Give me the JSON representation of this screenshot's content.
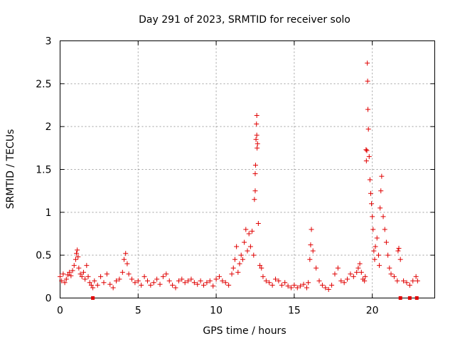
{
  "chart_data": {
    "type": "scatter",
    "title": "Day 291 of 2023, SRMTID for receiver solo",
    "xlabel": "GPS time / hours",
    "ylabel": "SRMTID / TECUs",
    "xlim": [
      0,
      24
    ],
    "ylim": [
      0,
      3
    ],
    "xticks": [
      0,
      5,
      10,
      15,
      20
    ],
    "yticks": [
      0,
      0.5,
      1,
      1.5,
      2,
      2.5,
      3
    ],
    "xtick_labels": [
      "0",
      "5",
      "10",
      "15",
      "20"
    ],
    "ytick_labels": [
      "0",
      "0.5",
      "1",
      "1.5",
      "2",
      "2.5",
      "3"
    ],
    "grid": true,
    "series": [
      {
        "name": "SRMTID",
        "color": "#e00000",
        "marker": "plus",
        "x": [
          0.0,
          0.1,
          0.2,
          0.3,
          0.4,
          0.5,
          0.6,
          0.7,
          0.8,
          0.9,
          1.0,
          1.05,
          1.1,
          1.15,
          1.2,
          1.3,
          1.4,
          1.5,
          1.6,
          1.7,
          1.8,
          1.9,
          2.0,
          2.1,
          2.2,
          2.4,
          2.6,
          2.8,
          3.0,
          3.2,
          3.4,
          3.6,
          3.8,
          4.0,
          4.1,
          4.2,
          4.3,
          4.4,
          4.6,
          4.8,
          5.0,
          5.2,
          5.4,
          5.6,
          5.8,
          6.0,
          6.2,
          6.4,
          6.6,
          6.8,
          7.0,
          7.2,
          7.4,
          7.6,
          7.8,
          8.0,
          8.2,
          8.4,
          8.6,
          8.8,
          9.0,
          9.2,
          9.4,
          9.6,
          9.8,
          10.0,
          10.2,
          10.4,
          10.6,
          10.8,
          11.0,
          11.1,
          11.2,
          11.3,
          11.4,
          11.5,
          11.6,
          11.7,
          11.8,
          11.9,
          12.0,
          12.1,
          12.2,
          12.3,
          12.4,
          12.45,
          12.5,
          12.5,
          12.52,
          12.55,
          12.58,
          12.6,
          12.6,
          12.62,
          12.65,
          12.7,
          12.8,
          12.9,
          13.0,
          13.2,
          13.4,
          13.6,
          13.8,
          14.0,
          14.2,
          14.4,
          14.6,
          14.8,
          15.0,
          15.2,
          15.4,
          15.6,
          15.8,
          15.9,
          16.0,
          16.05,
          16.1,
          16.2,
          16.4,
          16.6,
          16.8,
          17.0,
          17.2,
          17.4,
          17.6,
          17.8,
          18.0,
          18.2,
          18.4,
          18.6,
          18.8,
          19.0,
          19.1,
          19.2,
          19.3,
          19.4,
          19.5,
          19.55,
          19.6,
          19.62,
          19.65,
          19.68,
          19.7,
          19.72,
          19.75,
          19.8,
          19.85,
          19.9,
          19.95,
          20.0,
          20.05,
          20.1,
          20.15,
          20.2,
          20.3,
          20.4,
          20.45,
          20.5,
          20.55,
          20.6,
          20.7,
          20.8,
          20.9,
          21.0,
          21.1,
          21.2,
          21.4,
          21.6,
          21.65,
          21.7,
          21.8,
          22.0,
          22.2,
          22.4,
          22.6,
          22.8,
          22.9
        ],
        "y": [
          0.25,
          0.2,
          0.28,
          0.18,
          0.22,
          0.27,
          0.3,
          0.26,
          0.32,
          0.38,
          0.45,
          0.52,
          0.56,
          0.48,
          0.35,
          0.28,
          0.25,
          0.3,
          0.22,
          0.38,
          0.25,
          0.18,
          0.15,
          0.12,
          0.2,
          0.15,
          0.25,
          0.18,
          0.28,
          0.16,
          0.12,
          0.2,
          0.22,
          0.3,
          0.45,
          0.52,
          0.4,
          0.28,
          0.22,
          0.18,
          0.2,
          0.15,
          0.25,
          0.2,
          0.15,
          0.18,
          0.22,
          0.16,
          0.25,
          0.28,
          0.2,
          0.15,
          0.12,
          0.2,
          0.22,
          0.18,
          0.2,
          0.22,
          0.18,
          0.16,
          0.2,
          0.15,
          0.18,
          0.2,
          0.14,
          0.22,
          0.25,
          0.2,
          0.18,
          0.15,
          0.28,
          0.35,
          0.45,
          0.6,
          0.3,
          0.4,
          0.5,
          0.45,
          0.65,
          0.8,
          0.55,
          0.75,
          0.6,
          0.78,
          0.5,
          1.15,
          1.25,
          1.45,
          1.55,
          1.85,
          2.03,
          2.13,
          1.9,
          1.75,
          1.8,
          0.87,
          0.38,
          0.35,
          0.25,
          0.2,
          0.18,
          0.15,
          0.22,
          0.2,
          0.15,
          0.18,
          0.14,
          0.12,
          0.15,
          0.12,
          0.14,
          0.16,
          0.12,
          0.18,
          0.45,
          0.62,
          0.8,
          0.55,
          0.35,
          0.2,
          0.15,
          0.12,
          0.1,
          0.15,
          0.28,
          0.35,
          0.2,
          0.18,
          0.22,
          0.28,
          0.25,
          0.3,
          0.35,
          0.4,
          0.3,
          0.22,
          0.2,
          0.25,
          1.73,
          1.6,
          1.72,
          2.74,
          2.53,
          2.2,
          1.97,
          1.65,
          1.38,
          1.22,
          1.1,
          0.95,
          0.8,
          0.55,
          0.45,
          0.6,
          0.7,
          0.5,
          0.38,
          1.05,
          1.25,
          1.42,
          0.95,
          0.8,
          0.65,
          0.5,
          0.35,
          0.28,
          0.25,
          0.2,
          0.55,
          0.58,
          0.45,
          0.2,
          0.18,
          0.15,
          0.2,
          0.25,
          0.2
        ]
      }
    ],
    "outliers_at_zero_x": [
      2.1,
      21.8,
      22.4,
      22.85
    ]
  }
}
